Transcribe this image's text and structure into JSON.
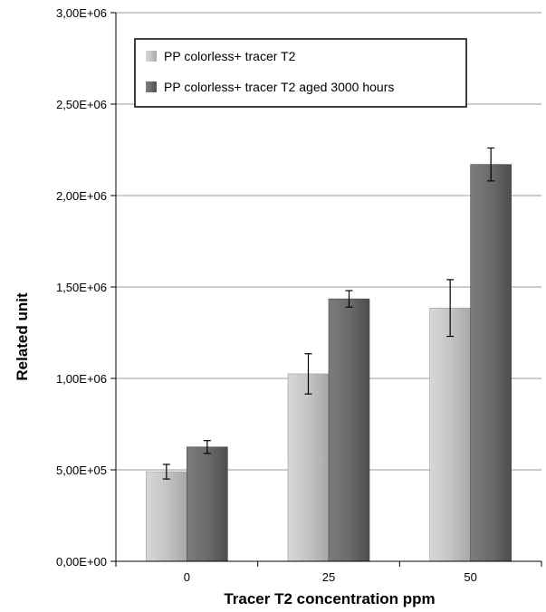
{
  "chart_data": {
    "type": "bar",
    "categories": [
      "0",
      "25",
      "50"
    ],
    "series": [
      {
        "name": "PP colorless+ tracer T2",
        "values": [
          490000,
          1025000,
          1385000
        ],
        "errors": [
          40000,
          110000,
          155000
        ],
        "color": "#c4c4c4"
      },
      {
        "name": "PP colorless+ tracer T2 aged 3000 hours",
        "values": [
          625000,
          1435000,
          2170000
        ],
        "errors": [
          35000,
          45000,
          90000
        ],
        "color": "#6b6b6b"
      }
    ],
    "xlabel": "Tracer T2 concentration ppm",
    "ylabel": "Related unit",
    "ylim": [
      0,
      3000000
    ],
    "yticks": [
      0,
      500000,
      1000000,
      1500000,
      2000000,
      2500000,
      3000000
    ],
    "ytick_labels": [
      "0,00E+00",
      "5,00E+05",
      "1,00E+06",
      "1,50E+06",
      "2,00E+06",
      "2,50E+06",
      "3,00E+06"
    ],
    "grid": true,
    "legend_position": "top-left"
  }
}
